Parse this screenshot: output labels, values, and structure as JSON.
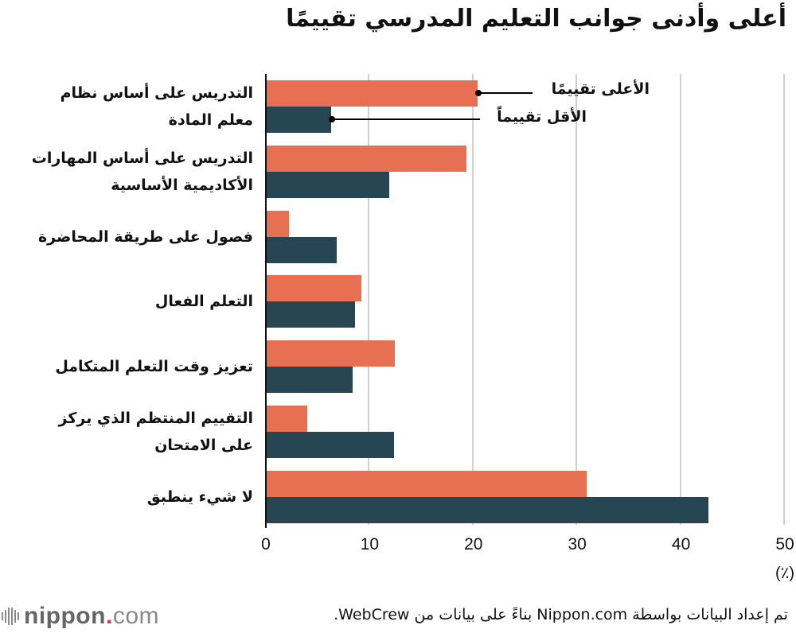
{
  "title": "أعلى وأدنى جوانب التعليم المدرسي تقييمًا",
  "legend": {
    "high_label": "الأعلى تقييمًا",
    "low_label": "الأقل تقييماً"
  },
  "colors": {
    "high": "#E87052",
    "low": "#264653",
    "grid": "#d0d0d0"
  },
  "axis": {
    "ticks": [
      "0",
      "10",
      "20",
      "30",
      "40",
      "50"
    ],
    "unit": "(٪)"
  },
  "categories": [
    {
      "line1": "التدريس على أساس نظام",
      "line2": "معلم المادة"
    },
    {
      "line1": "التدريس على أساس المهارات",
      "line2": "الأكاديمية الأساسية"
    },
    {
      "line1": "فصول على طريقة المحاضرة",
      "line2": ""
    },
    {
      "line1": "التعلم الفعال",
      "line2": ""
    },
    {
      "line1": "تعزيز وقت التعلم المتكامل",
      "line2": ""
    },
    {
      "line1": "التقييم المنتظم الذي يركز",
      "line2": "على الامتحان"
    },
    {
      "line1": "لا شيء ينطبق",
      "line2": ""
    }
  ],
  "footer": {
    "source_note": "تم إعداد البيانات بواسطة Nippon.com بناءً على بيانات من WebCrew.",
    "logo_main": "nippon",
    "logo_dot": ".",
    "logo_com": "com"
  },
  "chart_data": {
    "type": "bar",
    "orientation": "horizontal",
    "title": "أعلى وأدنى جوانب التعليم المدرسي تقييمًا",
    "categories": [
      "التدريس على أساس نظام معلم المادة",
      "التدريس على أساس المهارات الأكاديمية الأساسية",
      "فصول على طريقة المحاضرة",
      "التعلم الفعال",
      "تعزيز وقت التعلم المتكامل",
      "التقييم المنتظم الذي يركز على الامتحان",
      "لا شيء ينطبق"
    ],
    "series": [
      {
        "name": "الأعلى تقييمًا",
        "color": "#E87052",
        "values": [
          20.5,
          19.4,
          2.3,
          9.3,
          12.5,
          4.1,
          31.0
        ]
      },
      {
        "name": "الأقل تقييماً",
        "color": "#264653",
        "values": [
          6.4,
          12.0,
          6.9,
          8.7,
          8.4,
          12.4,
          42.7
        ]
      }
    ],
    "xlabel": "(٪)",
    "ylabel": "",
    "xlim": [
      0,
      50
    ],
    "xticks": [
      0,
      10,
      20,
      30,
      40,
      50
    ],
    "grid": true,
    "legend_position": "inline-annotations near first row"
  }
}
